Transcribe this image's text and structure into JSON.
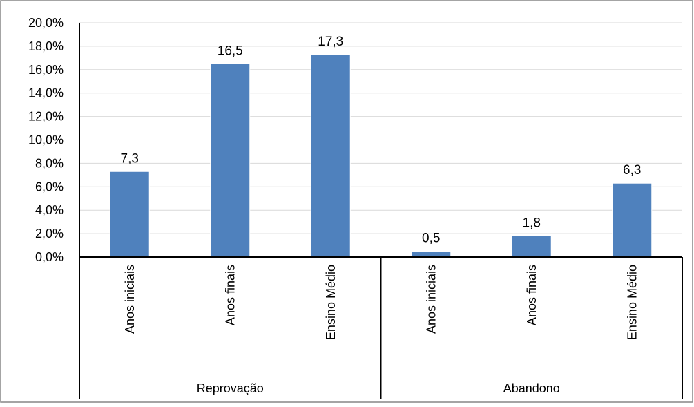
{
  "chart_data": {
    "type": "bar",
    "title": "",
    "xlabel": "",
    "ylabel": "",
    "ylim": [
      0,
      20
    ],
    "y_ticks": [
      "0,0%",
      "2,0%",
      "4,0%",
      "6,0%",
      "8,0%",
      "10,0%",
      "12,0%",
      "14,0%",
      "16,0%",
      "18,0%",
      "20,0%"
    ],
    "grid": true,
    "legend": "none",
    "groups": [
      {
        "name": "Reprovação",
        "categories": [
          "Anos iniciais",
          "Anos finais",
          "Ensino Médio"
        ],
        "values": [
          7.3,
          16.5,
          17.3
        ],
        "labels": [
          "7,3",
          "16,5",
          "17,3"
        ]
      },
      {
        "name": "Abandono",
        "categories": [
          "Anos iniciais",
          "Anos finais",
          "Ensino Médio"
        ],
        "values": [
          0.5,
          1.8,
          6.3
        ],
        "labels": [
          "0,5",
          "1,8",
          "6,3"
        ]
      }
    ],
    "colors": {
      "bar": "#4f81bd",
      "grid": "#d9d9d9",
      "axis": "#000000",
      "border": "#868686"
    }
  }
}
